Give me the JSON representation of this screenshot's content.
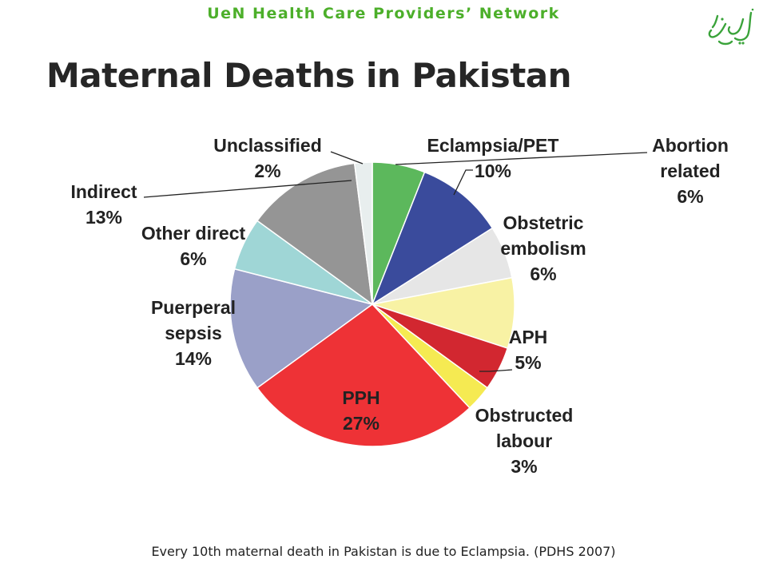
{
  "header": {
    "org_name": "UeN Health Care Providers’ Network"
  },
  "page_title": "Maternal Deaths in Pakistan",
  "footer": {
    "note": "Every 10th maternal death in Pakistan is due to Eclampsia. (PDHS 2007)"
  },
  "colors": {
    "header": "#4caf2a",
    "title": "#262626"
  },
  "chart_data": {
    "type": "pie",
    "title": "Maternal Deaths in Pakistan",
    "unit": "%",
    "slices": [
      {
        "label": [
          "Abortion",
          "related"
        ],
        "value": 6,
        "color": "#5cb85c"
      },
      {
        "label": [
          "Eclampsia/PET"
        ],
        "value": 10,
        "color": "#3a4b9c"
      },
      {
        "label": [
          "Obstetric",
          "embolism"
        ],
        "value": 6,
        "color": "#e6e6e6"
      },
      {
        "label": [
          "APH"
        ],
        "value": 8,
        "color": "#f8f2a4"
      },
      {
        "label": [
          "APH"
        ],
        "value": 5,
        "color": "#d22730"
      },
      {
        "label": [
          "Obstructed",
          "labour"
        ],
        "value": 3,
        "color": "#f5ea52"
      },
      {
        "label": [
          "PPH"
        ],
        "value": 27,
        "color": "#ee3236"
      },
      {
        "label": [
          "Puerperal",
          "sepsis"
        ],
        "value": 14,
        "color": "#9aa0c8"
      },
      {
        "label": [
          "Other direct"
        ],
        "value": 6,
        "color": "#9fd6d6"
      },
      {
        "label": [
          "Indirect"
        ],
        "value": 13,
        "color": "#959595"
      },
      {
        "label": [
          "Unclassified"
        ],
        "value": 2,
        "color": "#e8eeee"
      }
    ],
    "labels": [
      {
        "name": "abortion-related",
        "lines": [
          "Abortion",
          "related",
          "6%"
        ]
      },
      {
        "name": "eclampsia-pet",
        "lines": [
          "Eclampsia/PET",
          "10%"
        ]
      },
      {
        "name": "obstetric-embolism",
        "lines": [
          "Obstetric",
          "embolism",
          "6%"
        ]
      },
      {
        "name": "aph",
        "lines": [
          "APH",
          "5%"
        ]
      },
      {
        "name": "obstructed-labour",
        "lines": [
          "Obstructed",
          "labour",
          "3%"
        ]
      },
      {
        "name": "pph",
        "lines": [
          "PPH",
          "27%"
        ]
      },
      {
        "name": "puerperal-sepsis",
        "lines": [
          "Puerperal",
          "sepsis",
          "14%"
        ]
      },
      {
        "name": "other-direct",
        "lines": [
          "Other direct",
          "6%"
        ]
      },
      {
        "name": "indirect",
        "lines": [
          "Indirect",
          "13%"
        ]
      },
      {
        "name": "unclassified",
        "lines": [
          "Unclassified",
          "2%"
        ]
      }
    ]
  }
}
